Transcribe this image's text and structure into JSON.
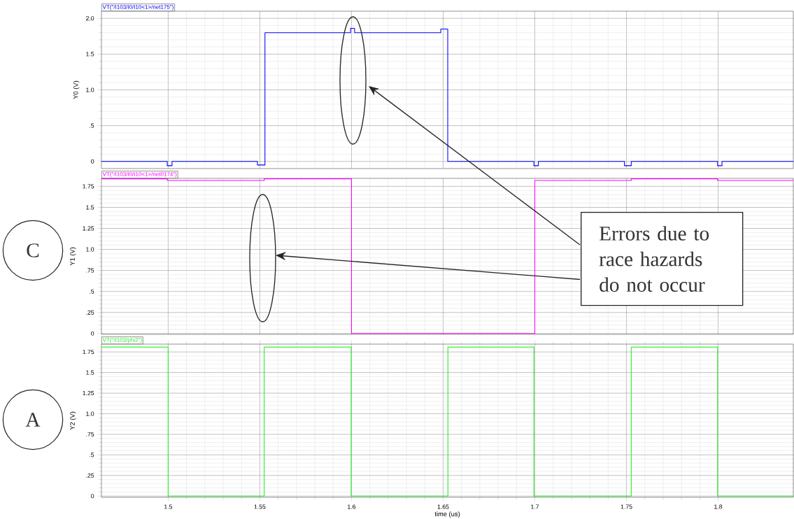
{
  "chart_data": [
    {
      "type": "step",
      "ylabel": "Y0 (V)",
      "xlim": [
        1.4636,
        1.841
      ],
      "ylim": [
        -0.1,
        2.1
      ],
      "xticks": [
        1.5,
        1.55,
        1.6,
        1.65,
        1.7,
        1.75,
        1.8
      ],
      "yticks": [
        0,
        {
          "value": 0.5,
          "label": ".5"
        },
        {
          "value": 1,
          "label": "1.0"
        },
        {
          "value": 1.5,
          "label": "1.5"
        },
        {
          "value": 2,
          "label": "2.0"
        }
      ],
      "grid": true,
      "tick_labels": "y",
      "series": [
        {
          "name": "VT(\"/I103/I0/I10<1>/net175\")",
          "color": "#0000ff",
          "x": [
            1.4636,
            1.4995,
            1.5021,
            1.5487,
            1.5528,
            1.5995,
            1.6017,
            1.6487,
            1.6525,
            1.6995,
            1.7019,
            1.7489,
            1.7526,
            1.7997,
            1.8021,
            1.841
          ],
          "values": [
            0,
            -0.06,
            0,
            -0.05,
            1.8,
            1.86,
            1.8,
            1.85,
            0,
            -0.06,
            0,
            -0.06,
            0,
            -0.06,
            0,
            0
          ]
        }
      ]
    },
    {
      "type": "step",
      "ylabel": "Y1 (V)",
      "xlim": [
        1.4636,
        1.841
      ],
      "ylim": [
        -0.01,
        1.845
      ],
      "xticks": [
        1.5,
        1.55,
        1.6,
        1.65,
        1.7,
        1.75,
        1.8
      ],
      "yticks": [
        0,
        {
          "value": 0.25,
          "label": ".25"
        },
        {
          "value": 0.5,
          "label": ".5"
        },
        {
          "value": 0.75,
          "label": ".75"
        },
        {
          "value": 1,
          "label": "1.0"
        },
        1.25,
        1.5,
        1.75
      ],
      "grid": true,
      "tick_labels": "y",
      "series": [
        {
          "name": "VT(\"/I103/I0/I10<1>/net0174\")",
          "color": "#ff00ff",
          "x": [
            1.4636,
            1.4995,
            1.5524,
            1.6,
            1.7,
            1.7526,
            1.7997,
            1.841
          ],
          "values": [
            1.84,
            1.82,
            1.84,
            0,
            1.82,
            1.84,
            1.82,
            1.82
          ]
        }
      ],
      "annotations": [
        "C",
        "Errors due to race hazards do not occur"
      ]
    },
    {
      "type": "step",
      "xlabel": "time (us)",
      "ylabel": "Y2 (V)",
      "xlim": [
        1.4636,
        1.841
      ],
      "ylim": [
        -0.015,
        1.845
      ],
      "xticks": [
        1.5,
        1.55,
        1.6,
        1.65,
        1.7,
        1.75,
        1.8
      ],
      "yticks": [
        0,
        {
          "value": 0.25,
          "label": ".25"
        },
        {
          "value": 0.5,
          "label": ".5"
        },
        {
          "value": 0.75,
          "label": ".75"
        },
        {
          "value": 1,
          "label": "1.0"
        },
        1.25,
        1.5,
        1.75
      ],
      "grid": true,
      "series": [
        {
          "name": "VT(\"/I103/phi2\")",
          "color": "#22ee22",
          "x": [
            1.4636,
            1.5,
            1.5524,
            1.5998,
            1.6526,
            1.6995,
            1.7526,
            1.7997,
            1.841
          ],
          "values": [
            1.81,
            0,
            1.81,
            0,
            1.81,
            0,
            1.81,
            0,
            0
          ]
        }
      ],
      "annotations": [
        "A"
      ]
    }
  ]
}
